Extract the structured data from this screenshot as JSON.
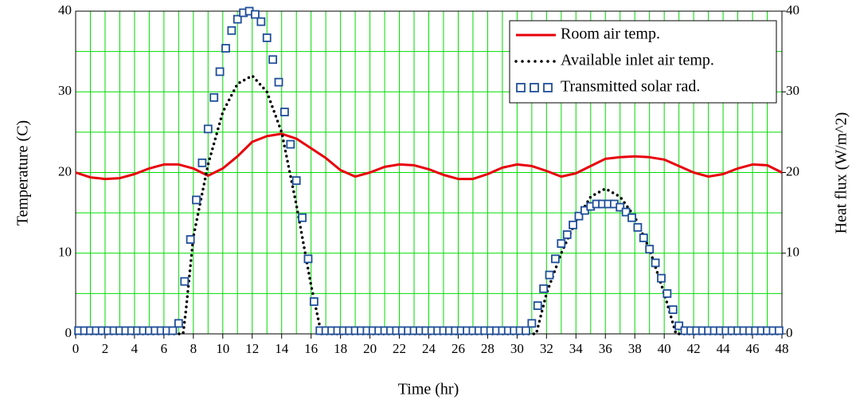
{
  "chart_data": {
    "type": "line",
    "x_label": "Time (hr)",
    "y_label": "Temperature (C)",
    "y2_label": "Heat flux (W/m^2)",
    "xlim": [
      0,
      48
    ],
    "xticks": [
      0,
      2,
      4,
      6,
      8,
      10,
      12,
      14,
      16,
      18,
      20,
      22,
      24,
      26,
      28,
      30,
      32,
      34,
      36,
      38,
      40,
      42,
      44,
      46,
      48
    ],
    "xgrid_minor": [
      1,
      3,
      5,
      7,
      9,
      11,
      13,
      15,
      17,
      19,
      21,
      23,
      25,
      27,
      29,
      31,
      33,
      35,
      37,
      39,
      41,
      43,
      45,
      47
    ],
    "ylim": [
      0,
      40
    ],
    "yticks": [
      0,
      10,
      20,
      30,
      40
    ],
    "ygrid_minor": [
      5,
      15,
      25,
      35
    ],
    "y2lim": [
      0,
      40
    ],
    "y2ticks": [
      0,
      10,
      20,
      30,
      40
    ],
    "grid": true,
    "grid_color": "#00dd00",
    "legend": "upper right",
    "series": [
      {
        "name": "Room air temp.",
        "color": "#e8000b",
        "style": "solid",
        "x": [
          0,
          1,
          2,
          3,
          4,
          5,
          6,
          7,
          8,
          9,
          10,
          11,
          12,
          13,
          14,
          15,
          16,
          17,
          18,
          19,
          20,
          21,
          22,
          23,
          24,
          25,
          26,
          27,
          28,
          29,
          30,
          31,
          32,
          33,
          34,
          35,
          36,
          37,
          38,
          39,
          40,
          41,
          42,
          43,
          44,
          45,
          46,
          47,
          48
        ],
        "values": [
          20,
          19.4,
          19.2,
          19.3,
          19.8,
          20.5,
          21,
          21,
          20.5,
          19.6,
          20.5,
          22,
          23.8,
          24.5,
          24.8,
          24.2,
          23,
          21.8,
          20.3,
          19.5,
          20,
          20.7,
          21,
          20.9,
          20.4,
          19.7,
          19.2,
          19.2,
          19.8,
          20.6,
          21,
          20.8,
          20.2,
          19.5,
          19.9,
          20.8,
          21.7,
          21.9,
          22,
          21.9,
          21.6,
          20.8,
          20,
          19.5,
          19.8,
          20.5,
          21,
          20.9,
          20
        ]
      },
      {
        "name": "Available inlet air temp.",
        "color": "#000000",
        "style": "dotted",
        "x": [
          0,
          7.3,
          7.5,
          8,
          9,
          10,
          11,
          12,
          13,
          14,
          15,
          16,
          16.7,
          31.3,
          32,
          33,
          34,
          35,
          36,
          37,
          38,
          39,
          40,
          40.8,
          48
        ],
        "values": [
          0,
          0,
          3,
          12,
          21,
          27.5,
          31,
          32,
          30,
          25,
          16,
          6,
          0,
          0,
          5,
          10,
          14,
          17,
          18,
          17,
          14.5,
          10.5,
          5,
          0,
          0
        ]
      },
      {
        "name": "Transmitted solar rad.",
        "color": "#1f4e9a",
        "style": "markers",
        "axis": "y2",
        "x": [
          0.2,
          0.6,
          1,
          1.4,
          1.8,
          2.2,
          2.6,
          3,
          3.4,
          3.8,
          4.2,
          4.6,
          5,
          5.4,
          5.8,
          6.2,
          6.6,
          7,
          7.4,
          7.8,
          8.2,
          8.6,
          9,
          9.4,
          9.8,
          10.2,
          10.6,
          11,
          11.4,
          11.8,
          12.2,
          12.6,
          13,
          13.4,
          13.8,
          14.2,
          14.6,
          15,
          15.4,
          15.8,
          16.2,
          16.6,
          17,
          17.4,
          17.8,
          18.2,
          18.6,
          19,
          19.4,
          19.8,
          20.2,
          20.6,
          21,
          21.4,
          21.8,
          22.2,
          22.6,
          23,
          23.4,
          23.8,
          24.2,
          24.6,
          25,
          25.4,
          25.8,
          26.2,
          26.6,
          27,
          27.4,
          27.8,
          28.2,
          28.6,
          29,
          29.4,
          29.8,
          30.2,
          30.6,
          31,
          31.4,
          31.8,
          32.2,
          32.6,
          33,
          33.4,
          33.8,
          34.2,
          34.6,
          35,
          35.4,
          35.8,
          36.2,
          36.6,
          37,
          37.4,
          37.8,
          38.2,
          38.6,
          39,
          39.4,
          39.8,
          40.2,
          40.6,
          41,
          41.4,
          41.8,
          42.2,
          42.6,
          43,
          43.4,
          43.8,
          44.2,
          44.6,
          45,
          45.4,
          45.8,
          46.2,
          46.6,
          47,
          47.4,
          47.8
        ],
        "values": [
          0.4,
          0.4,
          0.4,
          0.4,
          0.4,
          0.4,
          0.4,
          0.4,
          0.4,
          0.4,
          0.4,
          0.4,
          0.4,
          0.4,
          0.4,
          0.4,
          0.4,
          1.3,
          6.5,
          11.7,
          16.6,
          21.2,
          25.4,
          29.3,
          32.5,
          35.4,
          37.6,
          39,
          39.8,
          40,
          39.6,
          38.7,
          36.7,
          34,
          31.2,
          27.5,
          23.5,
          19,
          14.4,
          9.3,
          4,
          0.4,
          0.4,
          0.4,
          0.4,
          0.4,
          0.4,
          0.4,
          0.4,
          0.4,
          0.4,
          0.4,
          0.4,
          0.4,
          0.4,
          0.4,
          0.4,
          0.4,
          0.4,
          0.4,
          0.4,
          0.4,
          0.4,
          0.4,
          0.4,
          0.4,
          0.4,
          0.4,
          0.4,
          0.4,
          0.4,
          0.4,
          0.4,
          0.4,
          0.4,
          0.4,
          0.4,
          1.3,
          3.5,
          5.6,
          7.3,
          9.3,
          11.2,
          12.3,
          13.5,
          14.6,
          15.3,
          15.8,
          16.1,
          16.1,
          16.1,
          16.1,
          15.7,
          15.1,
          14.4,
          13.2,
          11.9,
          10.5,
          8.8,
          6.9,
          5,
          3,
          1,
          0.4,
          0.4,
          0.4,
          0.4,
          0.4,
          0.4,
          0.4,
          0.4,
          0.4,
          0.4,
          0.4,
          0.4,
          0.4,
          0.4,
          0.4,
          0.4,
          0.4
        ]
      }
    ]
  }
}
